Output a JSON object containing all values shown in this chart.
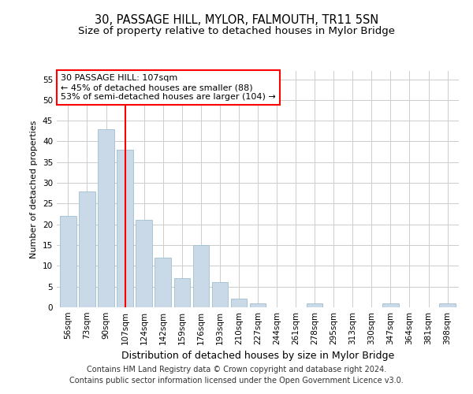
{
  "title": "30, PASSAGE HILL, MYLOR, FALMOUTH, TR11 5SN",
  "subtitle": "Size of property relative to detached houses in Mylor Bridge",
  "xlabel": "Distribution of detached houses by size in Mylor Bridge",
  "ylabel": "Number of detached properties",
  "categories": [
    "56sqm",
    "73sqm",
    "90sqm",
    "107sqm",
    "124sqm",
    "142sqm",
    "159sqm",
    "176sqm",
    "193sqm",
    "210sqm",
    "227sqm",
    "244sqm",
    "261sqm",
    "278sqm",
    "295sqm",
    "313sqm",
    "330sqm",
    "347sqm",
    "364sqm",
    "381sqm",
    "398sqm"
  ],
  "values": [
    22,
    28,
    43,
    38,
    21,
    12,
    7,
    15,
    6,
    2,
    1,
    0,
    0,
    1,
    0,
    0,
    0,
    1,
    0,
    0,
    1
  ],
  "bar_color": "#c9d9e8",
  "bar_edge_color": "#a0bfd0",
  "redline_index": 3,
  "ylim": [
    0,
    57
  ],
  "yticks": [
    0,
    5,
    10,
    15,
    20,
    25,
    30,
    35,
    40,
    45,
    50,
    55
  ],
  "annotation_line1": "30 PASSAGE HILL: 107sqm",
  "annotation_line2": "← 45% of detached houses are smaller (88)",
  "annotation_line3": "53% of semi-detached houses are larger (104) →",
  "annotation_box_color": "white",
  "annotation_box_edge": "red",
  "footer_line1": "Contains HM Land Registry data © Crown copyright and database right 2024.",
  "footer_line2": "Contains public sector information licensed under the Open Government Licence v3.0.",
  "background_color": "white",
  "grid_color": "#cccccc",
  "title_fontsize": 10.5,
  "subtitle_fontsize": 9.5,
  "xlabel_fontsize": 9,
  "ylabel_fontsize": 8,
  "tick_fontsize": 7.5,
  "annotation_fontsize": 8,
  "footer_fontsize": 7
}
